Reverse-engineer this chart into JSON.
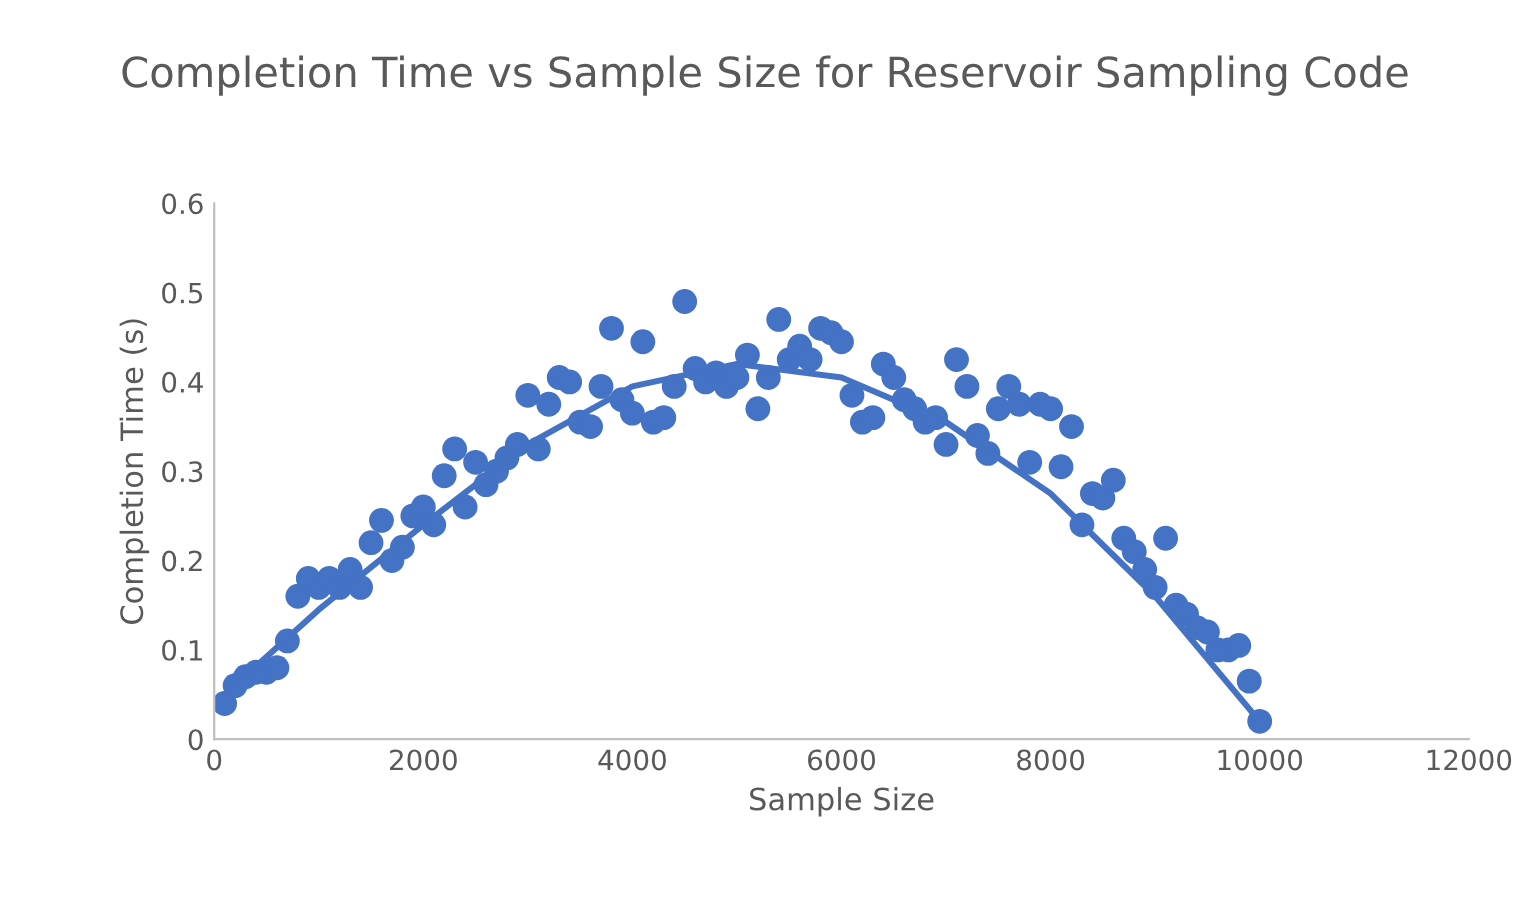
{
  "chart_data": {
    "type": "scatter",
    "title": "Completion Time vs Sample Size for Reservoir Sampling Code",
    "xlabel": "Sample Size",
    "ylabel": "Completion Time (s)",
    "xlim": [
      0,
      12000
    ],
    "xticks": [
      0,
      2000,
      4000,
      6000,
      8000,
      10000,
      12000
    ],
    "ylim": [
      0,
      0.6
    ],
    "yticks": [
      0,
      0.1,
      0.2,
      0.3,
      0.4,
      0.5,
      0.6
    ],
    "grid": false,
    "legend": false,
    "series": [
      {
        "color": "#4472c4",
        "marker": "circle",
        "x": [
          100,
          200,
          300,
          400,
          500,
          600,
          700,
          800,
          900,
          1000,
          1100,
          1200,
          1300,
          1400,
          1500,
          1600,
          1700,
          1800,
          1900,
          2000,
          2100,
          2200,
          2300,
          2400,
          2500,
          2600,
          2700,
          2800,
          2900,
          3000,
          3100,
          3200,
          3300,
          3400,
          3500,
          3600,
          3700,
          3800,
          3900,
          4000,
          4100,
          4200,
          4300,
          4400,
          4500,
          4600,
          4700,
          4800,
          4900,
          5000,
          5100,
          5200,
          5300,
          5400,
          5500,
          5600,
          5700,
          5800,
          5900,
          6000,
          6100,
          6200,
          6300,
          6400,
          6500,
          6600,
          6700,
          6800,
          6900,
          7000,
          7100,
          7200,
          7300,
          7400,
          7500,
          7600,
          7700,
          7800,
          7900,
          8000,
          8100,
          8200,
          8300,
          8400,
          8500,
          8600,
          8700,
          8800,
          8900,
          9000,
          9100,
          9200,
          9300,
          9400,
          9500,
          9600,
          9700,
          9800,
          9900,
          10000
        ],
        "values": [
          0.04,
          0.06,
          0.07,
          0.075,
          0.075,
          0.08,
          0.11,
          0.16,
          0.18,
          0.17,
          0.18,
          0.17,
          0.19,
          0.17,
          0.22,
          0.245,
          0.2,
          0.215,
          0.25,
          0.26,
          0.24,
          0.295,
          0.325,
          0.26,
          0.31,
          0.285,
          0.3,
          0.315,
          0.33,
          0.385,
          0.325,
          0.375,
          0.405,
          0.4,
          0.355,
          0.35,
          0.395,
          0.46,
          0.38,
          0.365,
          0.445,
          0.355,
          0.36,
          0.395,
          0.49,
          0.415,
          0.4,
          0.41,
          0.395,
          0.405,
          0.43,
          0.37,
          0.405,
          0.47,
          0.425,
          0.44,
          0.425,
          0.46,
          0.455,
          0.445,
          0.385,
          0.355,
          0.36,
          0.42,
          0.405,
          0.38,
          0.37,
          0.355,
          0.36,
          0.33,
          0.425,
          0.395,
          0.34,
          0.32,
          0.37,
          0.395,
          0.375,
          0.31,
          0.375,
          0.37,
          0.305,
          0.35,
          0.24,
          0.275,
          0.27,
          0.29,
          0.225,
          0.21,
          0.19,
          0.17,
          0.225,
          0.15,
          0.14,
          0.125,
          0.12,
          0.1,
          0.1,
          0.105,
          0.065,
          0.02
        ]
      },
      {
        "type": "line",
        "marker": "none",
        "color": "#4472c4",
        "line_style": "solid",
        "x": [
          100,
          1000,
          2000,
          3000,
          4000,
          5000,
          6000,
          7000,
          8000,
          9000,
          10000
        ],
        "values": [
          0.05,
          0.145,
          0.24,
          0.33,
          0.395,
          0.42,
          0.405,
          0.355,
          0.275,
          0.16,
          0.02
        ]
      }
    ]
  }
}
